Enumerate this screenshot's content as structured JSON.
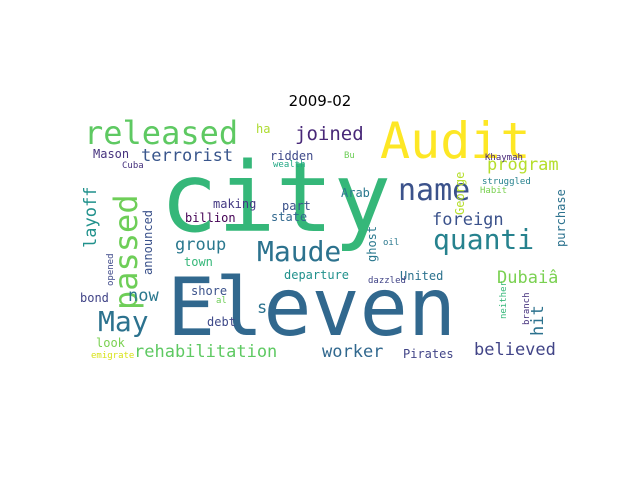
{
  "title": "2009-02",
  "words": [
    {
      "text": "city",
      "color": "#35b779"
    },
    {
      "text": "Eleven",
      "color": "#31688e"
    },
    {
      "text": "Audit",
      "color": "#fde725"
    },
    {
      "text": "released",
      "color": "#5ec962"
    },
    {
      "text": "passed",
      "color": "#6ece58"
    },
    {
      "text": "name",
      "color": "#3b528b"
    },
    {
      "text": "quanti",
      "color": "#26828e"
    },
    {
      "text": "Maude",
      "color": "#2c728e"
    },
    {
      "text": "May",
      "color": "#2c728e"
    },
    {
      "text": "rehabilitation",
      "color": "#5ec962"
    },
    {
      "text": "joined",
      "color": "#482878"
    },
    {
      "text": "terrorist",
      "color": "#39568c"
    },
    {
      "text": "program",
      "color": "#b5de2b"
    },
    {
      "text": "foreign",
      "color": "#3b528b"
    },
    {
      "text": "layoff",
      "color": "#21918c"
    },
    {
      "text": "group",
      "color": "#2a788e"
    },
    {
      "text": "Dubaiâ",
      "color": "#7ad151"
    },
    {
      "text": "hit",
      "color": "#2c728e"
    },
    {
      "text": "believed",
      "color": "#414487"
    },
    {
      "text": "worker",
      "color": "#31688e"
    },
    {
      "text": "now",
      "color": "#2a788e"
    },
    {
      "text": "Mason",
      "color": "#46327e"
    },
    {
      "text": "ridden",
      "color": "#3e4989"
    },
    {
      "text": "ha",
      "color": "#addc30"
    },
    {
      "text": "Bu",
      "color": "#6ece58"
    },
    {
      "text": "Khaymah",
      "color": "#482878"
    },
    {
      "text": "Cuba",
      "color": "#46327e"
    },
    {
      "text": "wealth",
      "color": "#22a884"
    },
    {
      "text": "making",
      "color": "#443983"
    },
    {
      "text": "billion",
      "color": "#440154"
    },
    {
      "text": "part",
      "color": "#3b528b"
    },
    {
      "text": "state",
      "color": "#31688e"
    },
    {
      "text": "Arab",
      "color": "#2a788e"
    },
    {
      "text": "George",
      "color": "#b5de2b"
    },
    {
      "text": "struggled",
      "color": "#26828e"
    },
    {
      "text": "purchase",
      "color": "#2c728e"
    },
    {
      "text": "Habit",
      "color": "#7ad151"
    },
    {
      "text": "announced",
      "color": "#3b528b"
    },
    {
      "text": "town",
      "color": "#35b779"
    },
    {
      "text": "departure",
      "color": "#21918c"
    },
    {
      "text": "ghost",
      "color": "#2a788e"
    },
    {
      "text": "oil",
      "color": "#2a788e"
    },
    {
      "text": "United",
      "color": "#2c728e"
    },
    {
      "text": "bond",
      "color": "#414487"
    },
    {
      "text": "shore",
      "color": "#3b528b"
    },
    {
      "text": "al",
      "color": "#6ece58"
    },
    {
      "text": "debt",
      "color": "#3e4989"
    },
    {
      "text": "dazzled",
      "color": "#414487"
    },
    {
      "text": "neither",
      "color": "#35b779"
    },
    {
      "text": "branch",
      "color": "#46327e"
    },
    {
      "text": "s",
      "color": "#2c728e"
    },
    {
      "text": "look",
      "color": "#7ad151"
    },
    {
      "text": "emigrate",
      "color": "#d8e219"
    },
    {
      "text": "Pirates",
      "color": "#414487"
    },
    {
      "text": "opened",
      "color": "#3e4989"
    }
  ]
}
